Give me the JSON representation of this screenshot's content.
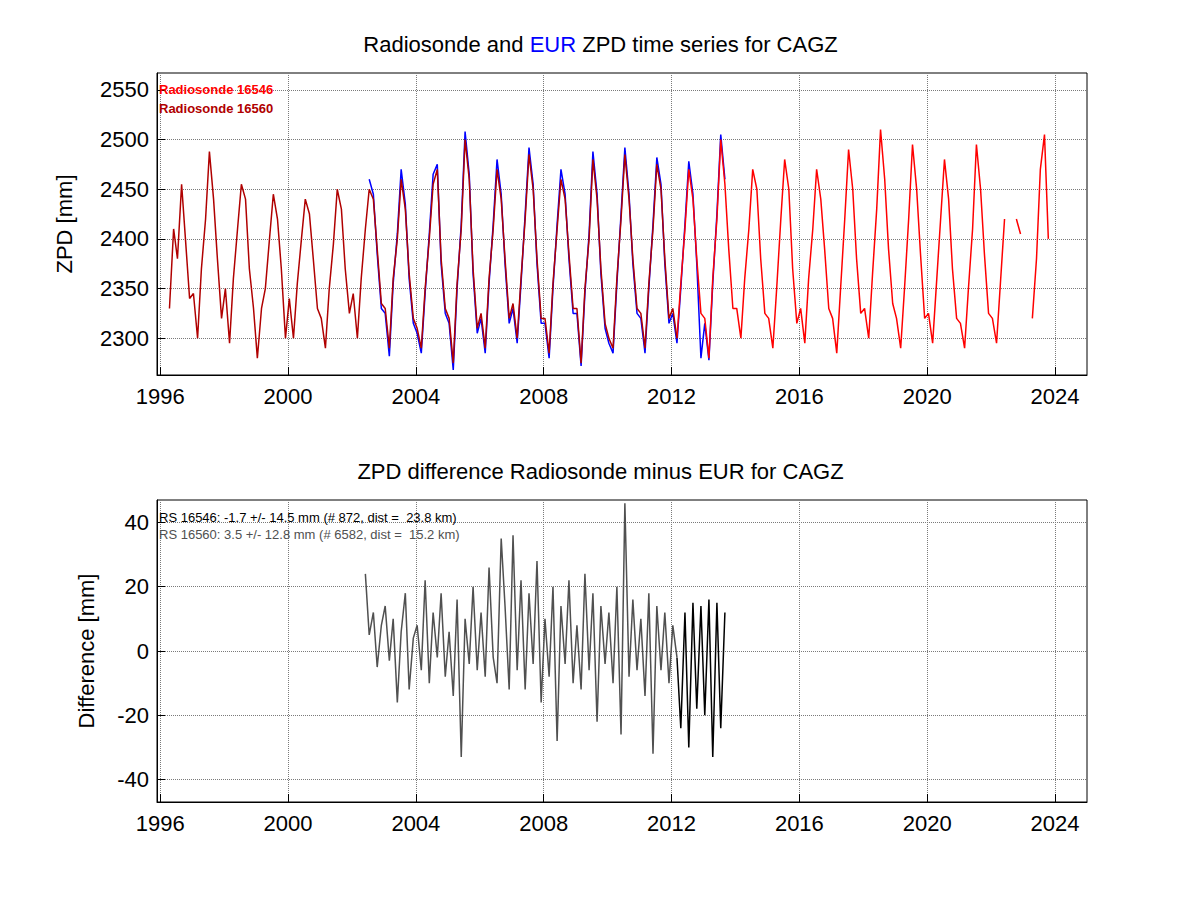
{
  "chart_data": [
    {
      "type": "line",
      "title": "Radiosonde and EUR ZPD time series for CAGZ",
      "y_label": "ZPD [mm]",
      "xlim": [
        1995.9,
        2025
      ],
      "xticks": [
        1996,
        2000,
        2004,
        2008,
        2012,
        2016,
        2020,
        2024
      ],
      "ylim": [
        2263,
        2567
      ],
      "yticks": [
        2300,
        2350,
        2400,
        2450,
        2500,
        2550
      ],
      "grid": true,
      "series": [
        {
          "name": "EUR",
          "color": "#0000ff",
          "x": [
            2002.54,
            2002.67,
            2002.79,
            2002.92,
            2003.04,
            2003.17,
            2003.29,
            2003.42,
            2003.54,
            2003.67,
            2003.79,
            2003.92,
            2004.04,
            2004.17,
            2004.29,
            2004.42,
            2004.54,
            2004.67,
            2004.79,
            2004.92,
            2005.04,
            2005.17,
            2005.29,
            2005.42,
            2005.54,
            2005.67,
            2005.79,
            2005.92,
            2006.04,
            2006.17,
            2006.29,
            2006.42,
            2006.54,
            2006.67,
            2006.79,
            2006.92,
            2007.04,
            2007.17,
            2007.29,
            2007.42,
            2007.54,
            2007.67,
            2007.79,
            2007.92,
            2008.04,
            2008.17,
            2008.29,
            2008.42,
            2008.54,
            2008.67,
            2008.79,
            2008.92,
            2009.04,
            2009.17,
            2009.29,
            2009.42,
            2009.54,
            2009.67,
            2009.79,
            2009.92,
            2010.04,
            2010.17,
            2010.29,
            2010.42,
            2010.54,
            2010.67,
            2010.79,
            2010.92,
            2011.04,
            2011.17,
            2011.29,
            2011.42,
            2011.54,
            2011.67,
            2011.79,
            2011.92,
            2012.04,
            2012.17,
            2012.29,
            2012.42,
            2012.54,
            2012.67,
            2012.79,
            2012.92,
            2013.04,
            2013.17,
            2013.29,
            2013.42,
            2013.54,
            2013.67
          ],
          "values": [
            2460,
            2445,
            2385,
            2330,
            2325,
            2282,
            2355,
            2405,
            2470,
            2435,
            2360,
            2315,
            2305,
            2285,
            2345,
            2405,
            2465,
            2475,
            2375,
            2325,
            2315,
            2268,
            2350,
            2415,
            2508,
            2465,
            2365,
            2305,
            2320,
            2285,
            2355,
            2415,
            2480,
            2445,
            2375,
            2315,
            2330,
            2295,
            2355,
            2425,
            2492,
            2455,
            2375,
            2315,
            2315,
            2280,
            2350,
            2415,
            2470,
            2445,
            2380,
            2325,
            2325,
            2272,
            2345,
            2405,
            2488,
            2445,
            2365,
            2310,
            2295,
            2285,
            2355,
            2425,
            2492,
            2445,
            2375,
            2325,
            2320,
            2285,
            2350,
            2415,
            2482,
            2455,
            2375,
            2315,
            2325,
            2295,
            2350,
            2415,
            2478,
            2445,
            2375,
            2280,
            2315,
            2278,
            2355,
            2425,
            2505,
            2460
          ]
        },
        {
          "name": "Radiosonde 16546",
          "color": "#ff0000",
          "x": [
            2012.17,
            2012.29,
            2012.42,
            2012.54,
            2012.67,
            2012.79,
            2012.92,
            2013.04,
            2013.17,
            2013.29,
            2013.42,
            2013.54,
            2013.67,
            2013.79,
            2013.92,
            2014.04,
            2014.17,
            2014.29,
            2014.42,
            2014.54,
            2014.67,
            2014.79,
            2014.92,
            2015.04,
            2015.17,
            2015.29,
            2015.42,
            2015.54,
            2015.67,
            2015.79,
            2015.92,
            2016.04,
            2016.17,
            2016.29,
            2016.42,
            2016.54,
            2016.67,
            2016.79,
            2016.92,
            2017.04,
            2017.17,
            2017.29,
            2017.42,
            2017.54,
            2017.67,
            2017.79,
            2017.92,
            2018.04,
            2018.17,
            2018.29,
            2018.42,
            2018.54,
            2018.67,
            2018.79,
            2018.92,
            2019.04,
            2019.17,
            2019.29,
            2019.42,
            2019.54,
            2019.67,
            2019.79,
            2019.92,
            2020.04,
            2020.17,
            2020.29,
            2020.42,
            2020.54,
            2020.67,
            2020.79,
            2020.92,
            2021.04,
            2021.17,
            2021.29,
            2021.42,
            2021.54,
            2021.67,
            2021.79,
            2021.92,
            2022.04,
            2022.17,
            2022.29,
            2022.42,
            2022.54,
            2022.67,
            2022.79,
            2022.92,
            2023.04,
            2023.17,
            2023.29,
            2023.42,
            2023.54,
            2023.67,
            2023.79
          ],
          "values": [
            2300,
            2355,
            2410,
            2470,
            2440,
            2380,
            2325,
            2320,
            2280,
            2360,
            2420,
            2500,
            2455,
            2390,
            2330,
            2330,
            2300,
            2360,
            2410,
            2470,
            2450,
            2380,
            2325,
            2320,
            2290,
            2350,
            2420,
            2480,
            2450,
            2370,
            2315,
            2330,
            2295,
            2360,
            2410,
            2470,
            2440,
            2390,
            2330,
            2320,
            2285,
            2350,
            2420,
            2490,
            2450,
            2380,
            2325,
            2330,
            2300,
            2365,
            2430,
            2510,
            2460,
            2390,
            2335,
            2320,
            2290,
            2350,
            2420,
            2495,
            2450,
            2385,
            2320,
            2325,
            2295,
            2355,
            2420,
            2480,
            2440,
            2370,
            2320,
            2315,
            2290,
            2350,
            2410,
            2495,
            2450,
            2385,
            2325,
            2320,
            2295,
            2355,
            2420,
            null,
            null,
            2420,
            2405,
            null,
            null,
            2320,
            2380,
            2470,
            2505,
            2400
          ]
        },
        {
          "name": "Radiosonde 16560",
          "color": "#b00000",
          "x": [
            1996.29,
            1996.42,
            1996.54,
            1996.67,
            1996.79,
            1996.92,
            1997.04,
            1997.17,
            1997.29,
            1997.42,
            1997.54,
            1997.67,
            1997.79,
            1997.92,
            1998.04,
            1998.17,
            1998.29,
            1998.42,
            1998.54,
            1998.67,
            1998.79,
            1998.92,
            1999.04,
            1999.17,
            1999.29,
            1999.42,
            1999.54,
            1999.67,
            1999.79,
            1999.92,
            2000.04,
            2000.17,
            2000.29,
            2000.42,
            2000.54,
            2000.67,
            2000.79,
            2000.92,
            2001.04,
            2001.17,
            2001.29,
            2001.42,
            2001.54,
            2001.67,
            2001.79,
            2001.92,
            2002.04,
            2002.17,
            2002.29,
            2002.42,
            2002.54,
            2002.67,
            2002.79,
            2002.92,
            2003.04,
            2003.17,
            2003.29,
            2003.42,
            2003.54,
            2003.67,
            2003.79,
            2003.92,
            2004.04,
            2004.17,
            2004.29,
            2004.42,
            2004.54,
            2004.67,
            2004.79,
            2004.92,
            2005.04,
            2005.17,
            2005.29,
            2005.42,
            2005.54,
            2005.67,
            2005.79,
            2005.92,
            2006.04,
            2006.17,
            2006.29,
            2006.42,
            2006.54,
            2006.67,
            2006.79,
            2006.92,
            2007.04,
            2007.17,
            2007.29,
            2007.42,
            2007.54,
            2007.67,
            2007.79,
            2007.92,
            2008.04,
            2008.17,
            2008.29,
            2008.42,
            2008.54,
            2008.67,
            2008.79,
            2008.92,
            2009.04,
            2009.17,
            2009.29,
            2009.42,
            2009.54,
            2009.67,
            2009.79,
            2009.92,
            2010.04,
            2010.17,
            2010.29,
            2010.42,
            2010.54,
            2010.67,
            2010.79,
            2010.92,
            2011.04,
            2011.17,
            2011.29,
            2011.42,
            2011.54,
            2011.67,
            2011.79,
            2011.92,
            2012.04,
            2012.17
          ],
          "values": [
            2330,
            2410,
            2380,
            2455,
            2400,
            2340,
            2345,
            2300,
            2370,
            2420,
            2488,
            2440,
            2380,
            2320,
            2350,
            2295,
            2360,
            2410,
            2455,
            2440,
            2370,
            2330,
            2280,
            2330,
            2350,
            2400,
            2445,
            2420,
            2370,
            2300,
            2340,
            2300,
            2355,
            2400,
            2440,
            2425,
            2380,
            2330,
            2320,
            2290,
            2350,
            2395,
            2450,
            2430,
            2370,
            2325,
            2345,
            2300,
            2360,
            2410,
            2450,
            2440,
            2390,
            2335,
            2330,
            2290,
            2360,
            2400,
            2460,
            2430,
            2365,
            2320,
            2310,
            2290,
            2350,
            2400,
            2455,
            2470,
            2380,
            2330,
            2320,
            2275,
            2355,
            2410,
            2500,
            2460,
            2370,
            2310,
            2325,
            2290,
            2360,
            2410,
            2470,
            2440,
            2380,
            2320,
            2335,
            2300,
            2360,
            2420,
            2485,
            2450,
            2380,
            2320,
            2320,
            2285,
            2355,
            2410,
            2460,
            2440,
            2385,
            2330,
            2330,
            2275,
            2350,
            2400,
            2480,
            2440,
            2370,
            2315,
            2300,
            2290,
            2360,
            2420,
            2485,
            2440,
            2380,
            2330,
            2325,
            2290,
            2355,
            2410,
            2475,
            2450,
            2380,
            2320,
            2330,
            2300
          ]
        }
      ]
    },
    {
      "type": "line",
      "title": "ZPD difference Radiosonde minus EUR for CAGZ",
      "y_label": "Difference [mm]",
      "xlim": [
        1995.9,
        2025
      ],
      "xticks": [
        1996,
        2000,
        2004,
        2008,
        2012,
        2016,
        2020,
        2024
      ],
      "ylim": [
        -47,
        47
      ],
      "yticks": [
        -40,
        -20,
        0,
        20,
        40
      ],
      "grid": true,
      "series": [
        {
          "color": "#000000",
          "annotation": "RS 16546: -1.7 +/- 14.5 mm (# 872, dist =  23.8 km)",
          "x": [
            2012.17,
            2012.29,
            2012.42,
            2012.54,
            2012.67,
            2012.79,
            2012.92,
            2013.04,
            2013.17,
            2013.29,
            2013.42,
            2013.54,
            2013.67
          ],
          "values": [
            -2,
            -24,
            12,
            -30,
            15,
            -18,
            14,
            -20,
            16,
            -33,
            15,
            -24,
            12
          ]
        },
        {
          "color": "#505050",
          "annotation": "RS 16560: 3.5 +/- 12.8 mm (# 6582, dist =  15.2 km)",
          "x": [
            2002.42,
            2002.54,
            2002.67,
            2002.79,
            2002.92,
            2003.04,
            2003.17,
            2003.29,
            2003.42,
            2003.54,
            2003.67,
            2003.79,
            2003.92,
            2004.04,
            2004.17,
            2004.29,
            2004.42,
            2004.54,
            2004.67,
            2004.79,
            2004.92,
            2005.04,
            2005.17,
            2005.29,
            2005.42,
            2005.54,
            2005.67,
            2005.79,
            2005.92,
            2006.04,
            2006.17,
            2006.29,
            2006.42,
            2006.54,
            2006.67,
            2006.79,
            2006.92,
            2007.04,
            2007.17,
            2007.29,
            2007.42,
            2007.54,
            2007.67,
            2007.79,
            2007.92,
            2008.04,
            2008.17,
            2008.29,
            2008.42,
            2008.54,
            2008.67,
            2008.79,
            2008.92,
            2009.04,
            2009.17,
            2009.29,
            2009.42,
            2009.54,
            2009.67,
            2009.79,
            2009.92,
            2010.04,
            2010.17,
            2010.29,
            2010.42,
            2010.54,
            2010.67,
            2010.79,
            2010.92,
            2011.04,
            2011.17,
            2011.29,
            2011.42,
            2011.54,
            2011.67,
            2011.79,
            2011.92,
            2012.04,
            2012.17
          ],
          "values": [
            24,
            5,
            12,
            -5,
            8,
            14,
            -3,
            10,
            -16,
            6,
            18,
            -12,
            4,
            8,
            -6,
            22,
            -10,
            12,
            -2,
            18,
            -8,
            6,
            -14,
            16,
            -33,
            10,
            -4,
            20,
            -6,
            12,
            -8,
            26,
            -2,
            -10,
            35,
            14,
            -12,
            36,
            -6,
            22,
            -12,
            18,
            -4,
            28,
            -16,
            10,
            -8,
            20,
            -28,
            14,
            -4,
            22,
            -10,
            8,
            -12,
            24,
            -6,
            18,
            -22,
            14,
            -4,
            12,
            -10,
            20,
            -26,
            46,
            -8,
            16,
            -6,
            10,
            -14,
            18,
            -32,
            14,
            -6,
            12,
            -10,
            8,
            -2
          ]
        }
      ]
    }
  ]
}
